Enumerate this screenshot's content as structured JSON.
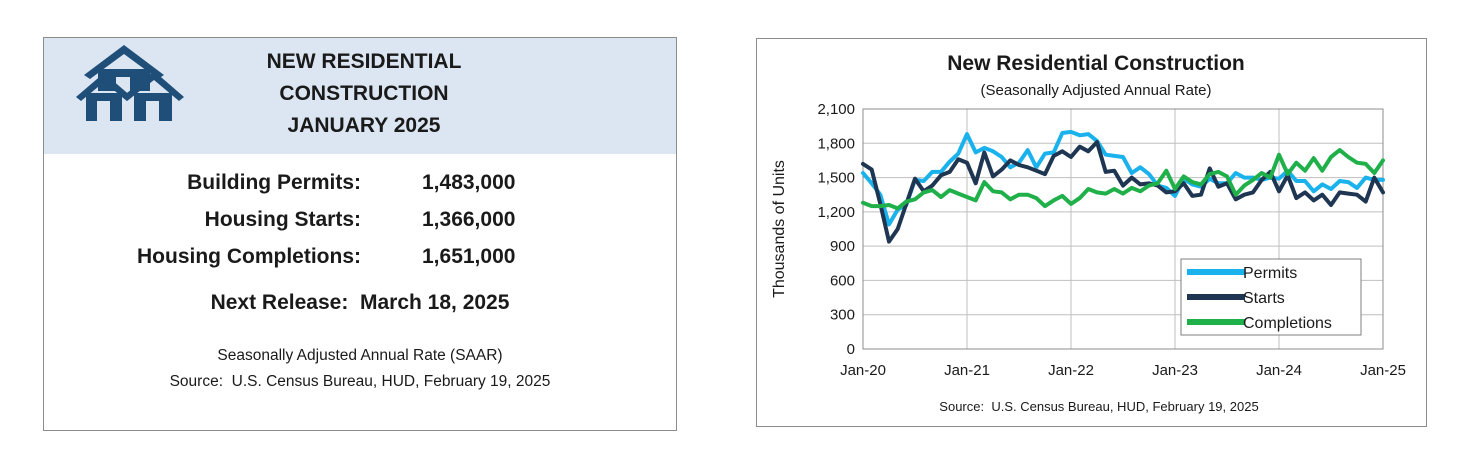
{
  "summary": {
    "title_lines": [
      "NEW RESIDENTIAL",
      "CONSTRUCTION",
      "JANUARY 2025"
    ],
    "rows": [
      {
        "label": "Building Permits:",
        "value": "1,483,000"
      },
      {
        "label": "Housing Starts:",
        "value": "1,366,000"
      },
      {
        "label": "Housing Completions:",
        "value": "1,651,000"
      }
    ],
    "next_release": "Next Release:  March 18, 2025",
    "note": "Seasonally Adjusted Annual Rate (SAAR)",
    "source": "Source:  U.S. Census Bureau, HUD, February 19, 2025",
    "colors": {
      "header_bg": "#dce6f2",
      "logo": "#1f4e79"
    },
    "logo_icon": "houses-icon"
  },
  "chart_data": {
    "type": "line",
    "title": "New Residential Construction",
    "subtitle": "(Seasonally Adjusted Annual Rate)",
    "xlabel": "",
    "ylabel": "Thousands of Units",
    "source": "Source:  U.S. Census Bureau, HUD, February 19, 2025",
    "ylim": [
      0,
      2100
    ],
    "y_ticks": [
      "0",
      "300",
      "600",
      "900",
      "1,200",
      "1,500",
      "1,800",
      "2,100"
    ],
    "x_ticks": [
      "Jan-20",
      "Jan-21",
      "Jan-22",
      "Jan-23",
      "Jan-24",
      "Jan-25"
    ],
    "grid": true,
    "legend_position": "bottom-right",
    "x": [
      "Jan-20",
      "Feb-20",
      "Mar-20",
      "Apr-20",
      "May-20",
      "Jun-20",
      "Jul-20",
      "Aug-20",
      "Sep-20",
      "Oct-20",
      "Nov-20",
      "Dec-20",
      "Jan-21",
      "Feb-21",
      "Mar-21",
      "Apr-21",
      "May-21",
      "Jun-21",
      "Jul-21",
      "Aug-21",
      "Sep-21",
      "Oct-21",
      "Nov-21",
      "Dec-21",
      "Jan-22",
      "Feb-22",
      "Mar-22",
      "Apr-22",
      "May-22",
      "Jun-22",
      "Jul-22",
      "Aug-22",
      "Sep-22",
      "Oct-22",
      "Nov-22",
      "Dec-22",
      "Jan-23",
      "Feb-23",
      "Mar-23",
      "Apr-23",
      "May-23",
      "Jun-23",
      "Jul-23",
      "Aug-23",
      "Sep-23",
      "Oct-23",
      "Nov-23",
      "Dec-23",
      "Jan-24",
      "Feb-24",
      "Mar-24",
      "Apr-24",
      "May-24",
      "Jun-24",
      "Jul-24",
      "Aug-24",
      "Sep-24",
      "Oct-24",
      "Nov-24",
      "Dec-24",
      "Jan-25"
    ],
    "series": [
      {
        "name": "Permits",
        "color": "#1ab2ec",
        "values": [
          1540,
          1450,
          1350,
          1090,
          1220,
          1260,
          1480,
          1470,
          1550,
          1550,
          1640,
          1710,
          1880,
          1720,
          1760,
          1730,
          1680,
          1590,
          1630,
          1740,
          1590,
          1710,
          1720,
          1890,
          1900,
          1870,
          1880,
          1820,
          1700,
          1690,
          1680,
          1540,
          1590,
          1530,
          1430,
          1410,
          1340,
          1490,
          1440,
          1420,
          1490,
          1450,
          1450,
          1540,
          1500,
          1500,
          1480,
          1500,
          1490,
          1560,
          1470,
          1470,
          1380,
          1440,
          1400,
          1470,
          1460,
          1410,
          1500,
          1480,
          1480
        ]
      },
      {
        "name": "Starts",
        "color": "#1f3653",
        "values": [
          1620,
          1570,
          1270,
          940,
          1050,
          1270,
          1490,
          1380,
          1430,
          1520,
          1550,
          1660,
          1630,
          1450,
          1720,
          1510,
          1570,
          1650,
          1610,
          1590,
          1560,
          1530,
          1690,
          1730,
          1680,
          1770,
          1730,
          1810,
          1550,
          1560,
          1430,
          1500,
          1440,
          1450,
          1430,
          1370,
          1380,
          1450,
          1340,
          1350,
          1580,
          1420,
          1450,
          1310,
          1350,
          1370,
          1480,
          1550,
          1380,
          1520,
          1320,
          1370,
          1300,
          1350,
          1260,
          1370,
          1360,
          1350,
          1290,
          1500,
          1370
        ]
      },
      {
        "name": "Completions",
        "color": "#1fb04a",
        "values": [
          1280,
          1250,
          1250,
          1260,
          1230,
          1290,
          1310,
          1370,
          1390,
          1330,
          1390,
          1360,
          1330,
          1300,
          1460,
          1380,
          1370,
          1310,
          1350,
          1350,
          1320,
          1250,
          1300,
          1340,
          1270,
          1320,
          1400,
          1370,
          1360,
          1400,
          1360,
          1410,
          1380,
          1430,
          1450,
          1560,
          1400,
          1510,
          1460,
          1440,
          1530,
          1550,
          1510,
          1350,
          1430,
          1480,
          1540,
          1500,
          1700,
          1530,
          1630,
          1560,
          1670,
          1560,
          1680,
          1740,
          1680,
          1630,
          1620,
          1540,
          1650
        ]
      }
    ]
  }
}
